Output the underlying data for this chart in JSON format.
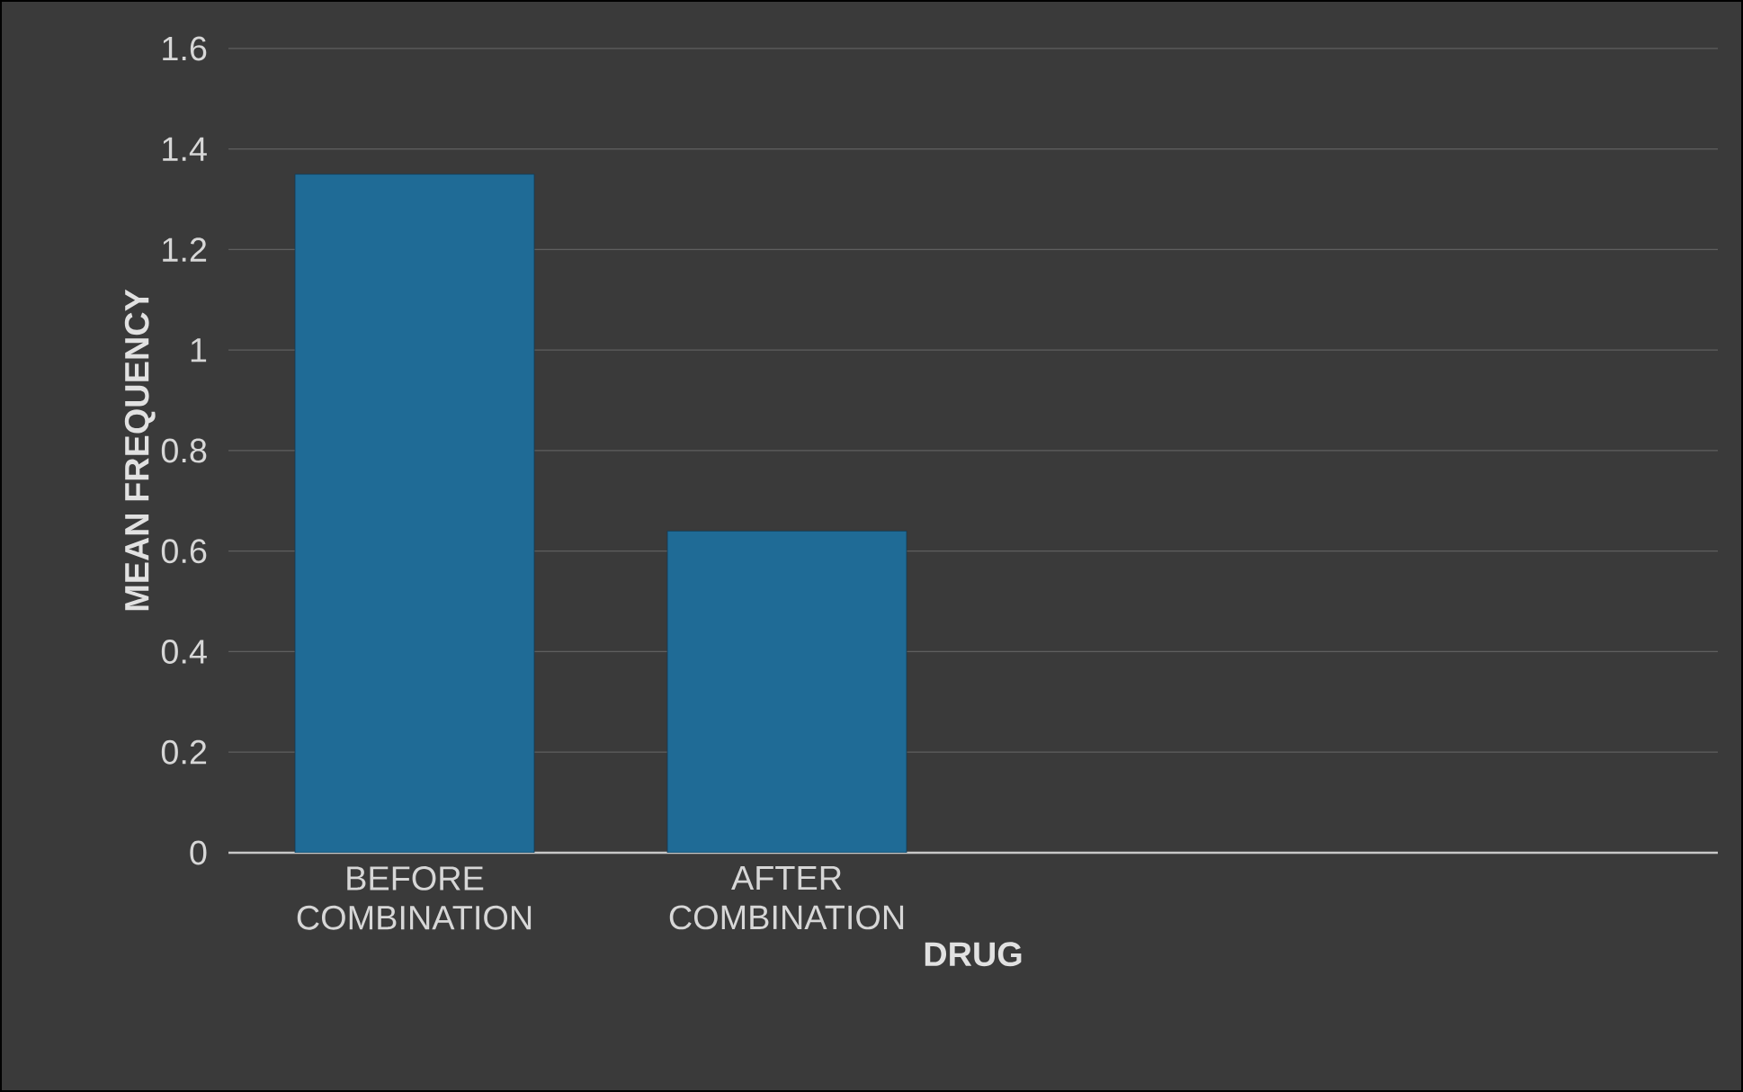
{
  "chart_data": {
    "type": "bar",
    "xlabel": "DRUG",
    "ylabel": "MEAN FREQUENCY",
    "categories": [
      "BEFORE COMBINATION",
      "AFTER COMBINATION",
      null,
      null
    ],
    "values": [
      1.35,
      0.64,
      null,
      null
    ],
    "color": "#1f6b96",
    "ylim": [
      0,
      1.6
    ],
    "yticks": [
      0,
      0.2,
      0.4,
      0.6,
      0.8,
      1,
      1.2,
      1.4,
      1.6
    ],
    "grid": "y"
  }
}
